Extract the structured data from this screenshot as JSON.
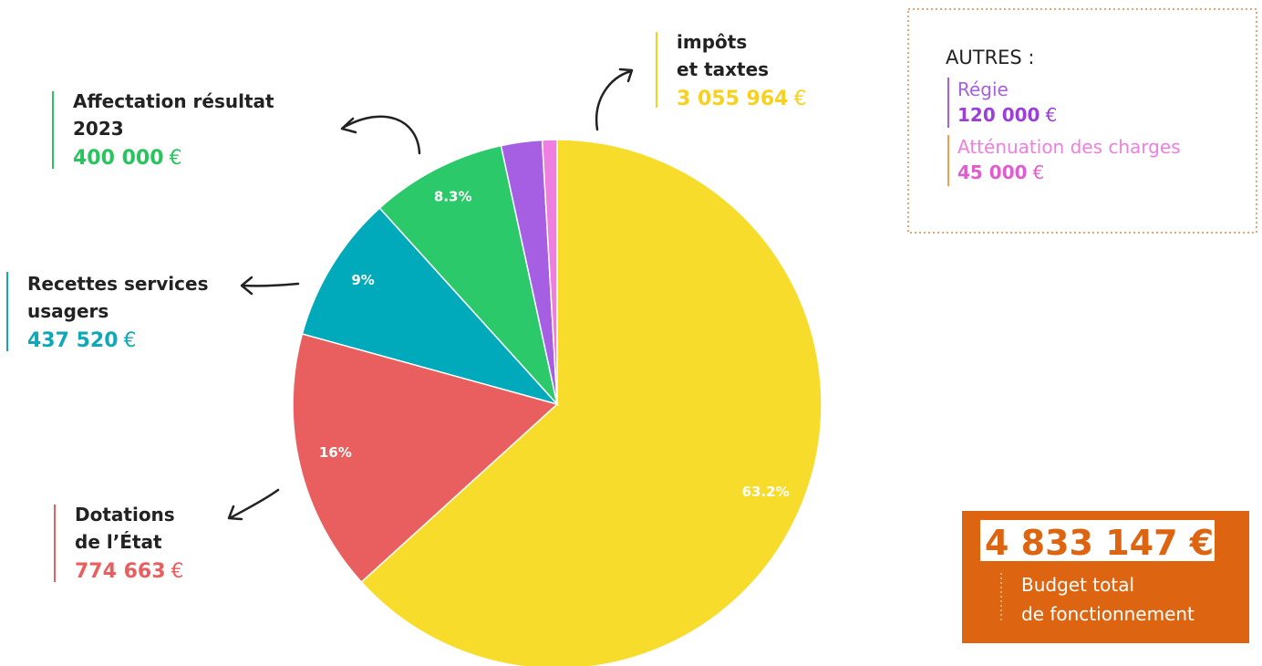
{
  "chart_data": {
    "type": "pie",
    "categories": [
      [
        "impôts",
        "et taxtes"
      ],
      [
        "Dotations",
        "de l’État"
      ],
      [
        "Recettes services",
        "usagers"
      ],
      [
        "Affectation résultat",
        "2023"
      ],
      [
        "Régie"
      ],
      [
        "Atténuation des charges"
      ]
    ],
    "values": [
      63.2,
      16,
      9,
      8.3,
      2.5,
      0.9
    ],
    "value_labels": [
      "63.2%",
      "16%",
      "9%",
      "8.3%",
      null,
      null
    ],
    "colors": [
      "#f8dc2c",
      "#e95e5e",
      "#00aabb",
      "#2bc96a",
      "#a65fe2",
      "#ee7fe0"
    ],
    "amounts": [
      "3 055 964",
      "774 663",
      "437 520",
      "400 000",
      "120 000",
      "45 000"
    ],
    "currency": "€",
    "others_title": "AUTRES :",
    "total": "4 833 147 €",
    "total_label": [
      "Budget total",
      "de fonctionnement"
    ]
  }
}
